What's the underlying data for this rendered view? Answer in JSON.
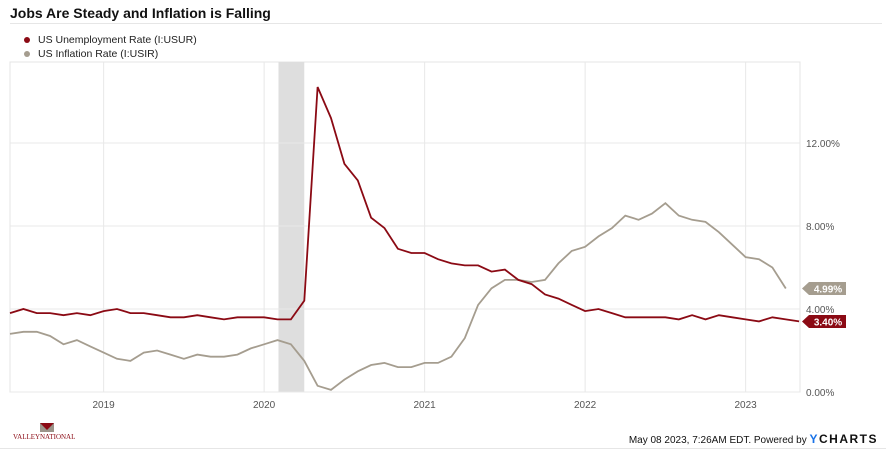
{
  "title": "Jobs Are Steady and Inflation is Falling",
  "footer": {
    "timestamp": "May 08 2023, 7:26AM EDT. Powered by",
    "brand_y": "Y",
    "brand_rest": "CHARTS"
  },
  "logo": {
    "text": "VALLEY NATIONAL"
  },
  "chart_data": {
    "type": "line",
    "title": "Jobs Are Steady and Inflation is Falling",
    "start_month": "2018-05",
    "x_ticks": [
      "2019",
      "2020",
      "2021",
      "2022",
      "2023"
    ],
    "y_ticks": [
      "0.00%",
      "4.00%",
      "8.00%",
      "12.00%"
    ],
    "ylim": [
      0,
      15.9
    ],
    "grid": true,
    "legend_position": "top-left",
    "recession_shading": {
      "start": "2020-02",
      "end": "2020-04"
    },
    "series": [
      {
        "name": "US Unemployment Rate (I:USUR)",
        "color": "#8b0a14",
        "last_label": "3.40%",
        "values": [
          3.8,
          4.0,
          3.8,
          3.8,
          3.7,
          3.8,
          3.7,
          3.9,
          4.0,
          3.8,
          3.8,
          3.7,
          3.6,
          3.6,
          3.7,
          3.6,
          3.5,
          3.6,
          3.6,
          3.6,
          3.5,
          3.5,
          4.4,
          14.7,
          13.2,
          11.0,
          10.2,
          8.4,
          7.9,
          6.9,
          6.7,
          6.7,
          6.4,
          6.2,
          6.1,
          6.1,
          5.8,
          5.9,
          5.4,
          5.2,
          4.7,
          4.5,
          4.2,
          3.9,
          4.0,
          3.8,
          3.6,
          3.6,
          3.6,
          3.6,
          3.5,
          3.7,
          3.5,
          3.7,
          3.6,
          3.5,
          3.4,
          3.6,
          3.5,
          3.4
        ]
      },
      {
        "name": "US Inflation Rate (I:USIR)",
        "color": "#a59d8f",
        "last_label": "4.99%",
        "values": [
          2.8,
          2.9,
          2.9,
          2.7,
          2.3,
          2.5,
          2.2,
          1.9,
          1.6,
          1.5,
          1.9,
          2.0,
          1.8,
          1.6,
          1.8,
          1.7,
          1.7,
          1.8,
          2.1,
          2.3,
          2.5,
          2.3,
          1.5,
          0.3,
          0.1,
          0.6,
          1.0,
          1.3,
          1.4,
          1.2,
          1.2,
          1.4,
          1.4,
          1.7,
          2.6,
          4.2,
          5.0,
          5.4,
          5.4,
          5.3,
          5.4,
          6.2,
          6.8,
          7.0,
          7.5,
          7.9,
          8.5,
          8.3,
          8.6,
          9.1,
          8.5,
          8.3,
          8.2,
          7.7,
          7.1,
          6.5,
          6.4,
          6.0,
          4.99
        ]
      }
    ]
  }
}
